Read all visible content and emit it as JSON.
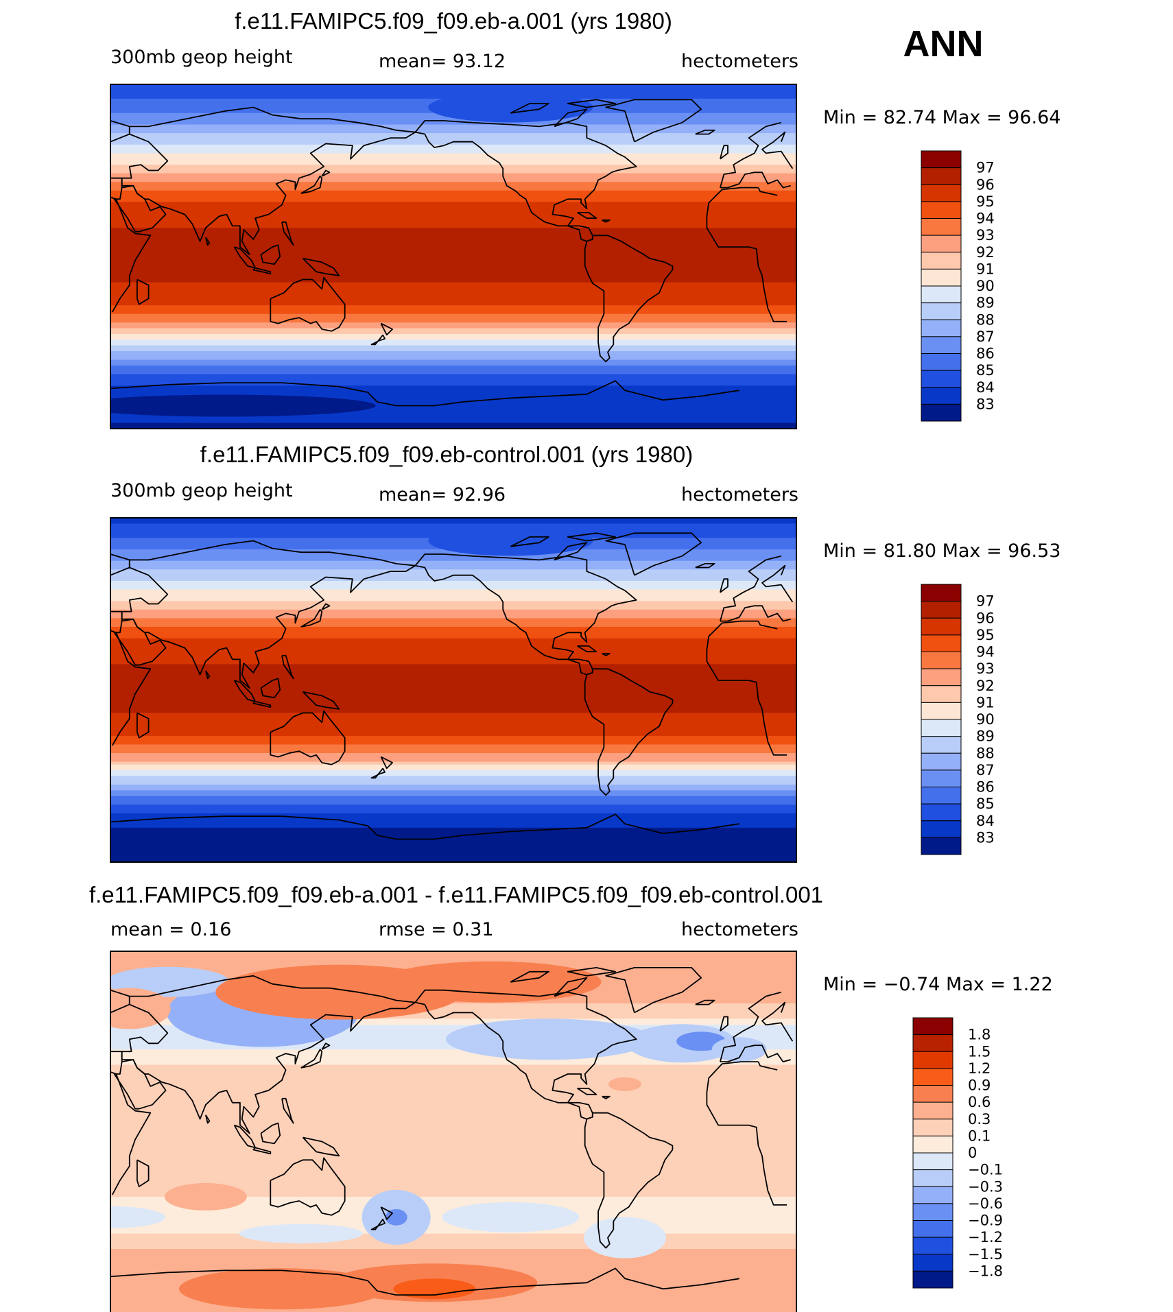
{
  "season": "ANN",
  "panels": [
    {
      "title": "f.e11.FAMIPC5.f09_f09.eb-a.001 (yrs 1980)",
      "left_text": "300mb geop height",
      "mean_text": "mean=   93.12",
      "units": "hectometers",
      "minmax_text": "Min =   82.74 Max =   96.64",
      "kind": "abs",
      "colorbar": {
        "labels": [
          "97",
          "96",
          "95",
          "94",
          "93",
          "92",
          "91",
          "90",
          "89",
          "88",
          "87",
          "86",
          "85",
          "84",
          "83"
        ],
        "colors": [
          "#8b0000",
          "#b22000",
          "#d63500",
          "#f05010",
          "#f87840",
          "#fca080",
          "#fdc8ac",
          "#fde6d4",
          "#dce8f8",
          "#b8cef8",
          "#94b0f8",
          "#6a90f4",
          "#4470ec",
          "#2050e0",
          "#0838c8",
          "#001a8a"
        ]
      },
      "chart_data": {
        "type": "heatmap",
        "variable": "300mb geop height",
        "units": "hectometers",
        "mean": 93.12,
        "min": 82.74,
        "max": 96.64,
        "levels": [
          83,
          84,
          85,
          86,
          87,
          88,
          89,
          90,
          91,
          92,
          93,
          94,
          95,
          96,
          97
        ],
        "lat_bands": [
          {
            "lat": 90,
            "value": 84.0
          },
          {
            "lat": 75,
            "value": 86.0
          },
          {
            "lat": 60,
            "value": 88.8
          },
          {
            "lat": 45,
            "value": 91.5
          },
          {
            "lat": 35,
            "value": 93.8
          },
          {
            "lat": 25,
            "value": 95.5
          },
          {
            "lat": 10,
            "value": 96.3
          },
          {
            "lat": -10,
            "value": 96.3
          },
          {
            "lat": -25,
            "value": 95.0
          },
          {
            "lat": -35,
            "value": 92.8
          },
          {
            "lat": -45,
            "value": 89.5
          },
          {
            "lat": -55,
            "value": 86.5
          },
          {
            "lat": -65,
            "value": 84.3
          },
          {
            "lat": -75,
            "value": 83.3
          },
          {
            "lat": -90,
            "value": 82.9
          }
        ]
      }
    },
    {
      "title": "f.e11.FAMIPC5.f09_f09.eb-control.001 (yrs 1980)",
      "left_text": "300mb geop height",
      "mean_text": "mean=   92.96",
      "units": "hectometers",
      "minmax_text": "Min =   81.80 Max =   96.53",
      "kind": "abs",
      "colorbar": {
        "labels": [
          "97",
          "96",
          "95",
          "94",
          "93",
          "92",
          "91",
          "90",
          "89",
          "88",
          "87",
          "86",
          "85",
          "84",
          "83"
        ],
        "colors": [
          "#8b0000",
          "#b22000",
          "#d63500",
          "#f05010",
          "#f87840",
          "#fca080",
          "#fdc8ac",
          "#fde6d4",
          "#dce8f8",
          "#b8cef8",
          "#94b0f8",
          "#6a90f4",
          "#4470ec",
          "#2050e0",
          "#0838c8",
          "#001a8a"
        ]
      },
      "chart_data": {
        "type": "heatmap",
        "variable": "300mb geop height",
        "units": "hectometers",
        "mean": 92.96,
        "min": 81.8,
        "max": 96.53,
        "levels": [
          83,
          84,
          85,
          86,
          87,
          88,
          89,
          90,
          91,
          92,
          93,
          94,
          95,
          96,
          97
        ],
        "lat_bands": [
          {
            "lat": 90,
            "value": 83.5
          },
          {
            "lat": 75,
            "value": 85.7
          },
          {
            "lat": 60,
            "value": 88.5
          },
          {
            "lat": 45,
            "value": 91.3
          },
          {
            "lat": 35,
            "value": 93.6
          },
          {
            "lat": 25,
            "value": 95.4
          },
          {
            "lat": 10,
            "value": 96.2
          },
          {
            "lat": -10,
            "value": 96.2
          },
          {
            "lat": -25,
            "value": 94.9
          },
          {
            "lat": -35,
            "value": 92.6
          },
          {
            "lat": -45,
            "value": 89.2
          },
          {
            "lat": -55,
            "value": 86.2
          },
          {
            "lat": -65,
            "value": 83.9
          },
          {
            "lat": -75,
            "value": 82.5
          },
          {
            "lat": -90,
            "value": 82.0
          }
        ]
      }
    },
    {
      "title": "f.e11.FAMIPC5.f09_f09.eb-a.001 - f.e11.FAMIPC5.f09_f09.eb-control.001",
      "left_text": "mean =    0.16",
      "mean_text": "rmse =    0.31",
      "units": "hectometers",
      "minmax_text": "Min =   −0.74 Max =    1.22",
      "kind": "diff",
      "colorbar": {
        "labels": [
          "1.8",
          "1.5",
          "1.2",
          "0.9",
          "0.6",
          "0.3",
          "0.1",
          "0",
          "−0.1",
          "−0.3",
          "−0.6",
          "−0.9",
          "−1.2",
          "−1.5",
          "−1.8"
        ],
        "colors": [
          "#8b0000",
          "#b82200",
          "#e03a00",
          "#f85c18",
          "#f88050",
          "#fcb090",
          "#fdd0b8",
          "#fdecdc",
          "#dce8f8",
          "#b8cef8",
          "#94b0f8",
          "#6a90f4",
          "#4470ec",
          "#2050e0",
          "#0838c8",
          "#001a8a"
        ]
      },
      "chart_data": {
        "type": "heatmap",
        "variable": "300mb geop height difference",
        "units": "hectometers",
        "mean": 0.16,
        "rmse": 0.31,
        "min": -0.74,
        "max": 1.22,
        "levels": [
          -1.8,
          -1.5,
          -1.2,
          -0.9,
          -0.6,
          -0.3,
          -0.1,
          0,
          0.1,
          0.3,
          0.6,
          0.9,
          1.2,
          1.5,
          1.8
        ],
        "lat_bands": [
          {
            "lat": 80,
            "value": 0.5
          },
          {
            "lat": 65,
            "value": 0.3
          },
          {
            "lat": 50,
            "value": -0.1
          },
          {
            "lat": 35,
            "value": 0.1
          },
          {
            "lat": 15,
            "value": 0.2
          },
          {
            "lat": -10,
            "value": 0.2
          },
          {
            "lat": -30,
            "value": 0.1
          },
          {
            "lat": -45,
            "value": 0.0
          },
          {
            "lat": -55,
            "value": 0.3
          },
          {
            "lat": -70,
            "value": 0.6
          },
          {
            "lat": -85,
            "value": 0.5
          }
        ]
      }
    }
  ]
}
